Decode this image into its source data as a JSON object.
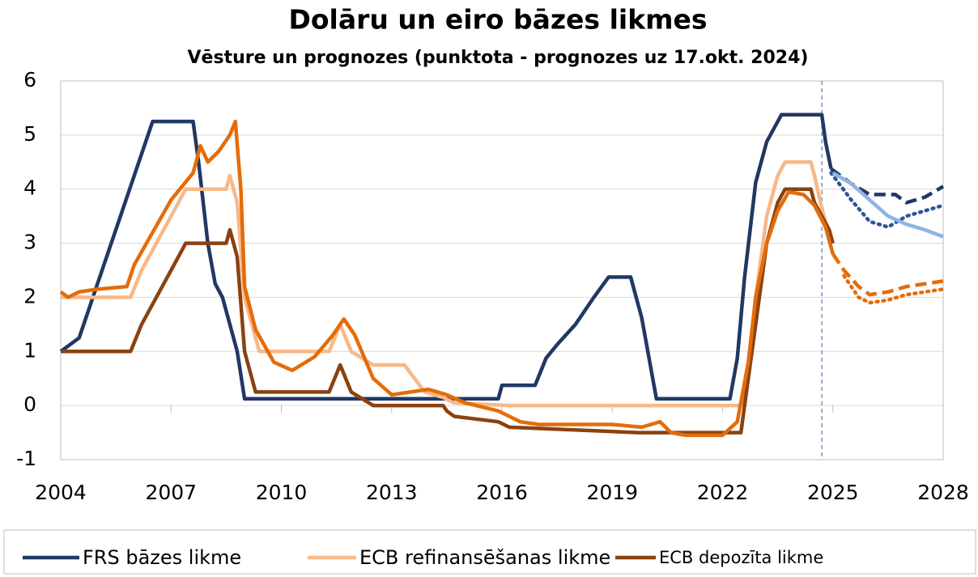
{
  "chart_data": {
    "type": "line",
    "title": "Dolāru un eiro bāzes likmes",
    "subtitle": "Vēsture un prognozes (punktota - prognozes uz 17.okt. 2024)",
    "xlim": [
      2004,
      2028
    ],
    "xticks": [
      2004,
      2007,
      2010,
      2013,
      2016,
      2019,
      2022,
      2025,
      2028
    ],
    "ylim": [
      -1,
      6
    ],
    "yticks": [
      -1,
      0,
      1,
      2,
      3,
      4,
      5,
      6
    ],
    "grid": true,
    "legend": "bottom",
    "forecast_line": 2024.7,
    "series": [
      {
        "name": "FRS bāzes likme",
        "color": "#203864",
        "dash": "solid",
        "x": [
          2004,
          2004.5,
          2004.75,
          2005,
          2005.5,
          2006,
          2006.5,
          2007.6,
          2007.75,
          2008,
          2008.2,
          2008.4,
          2008.8,
          2009,
          2015.9,
          2016,
          2016.9,
          2017.2,
          2017.5,
          2018,
          2018.5,
          2018.9,
          2019.5,
          2019.8,
          2020.2,
          2022.2,
          2022.4,
          2022.6,
          2022.9,
          2023.2,
          2023.6,
          2024.7,
          2024.8,
          2024.95
        ],
        "values": [
          1.0,
          1.25,
          1.75,
          2.25,
          3.25,
          4.25,
          5.25,
          5.25,
          4.5,
          3.0,
          2.25,
          2.0,
          1.0,
          0.125,
          0.125,
          0.375,
          0.375,
          0.875,
          1.125,
          1.5,
          2.0,
          2.375,
          2.375,
          1.625,
          0.125,
          0.125,
          0.875,
          2.375,
          4.125,
          4.875,
          5.375,
          5.375,
          4.875,
          4.375
        ]
      },
      {
        "name": "ECB refinansēšanas likme",
        "color": "#f8b888",
        "dash": "solid",
        "x": [
          2004,
          2005.9,
          2006.2,
          2006.6,
          2007,
          2007.4,
          2008.5,
          2008.6,
          2008.8,
          2009,
          2009.3,
          2009.4,
          2011.3,
          2011.6,
          2011.9,
          2012.5,
          2013.35,
          2013.9,
          2014.4,
          2014.7,
          2016.2,
          2022.5,
          2022.7,
          2022.9,
          2023.2,
          2023.5,
          2023.7,
          2024.4,
          2024.5,
          2024.7,
          2024.8
        ],
        "values": [
          2.0,
          2.0,
          2.5,
          3.0,
          3.5,
          4.0,
          4.0,
          4.25,
          3.75,
          2.0,
          1.25,
          1.0,
          1.0,
          1.5,
          1.0,
          0.75,
          0.75,
          0.25,
          0.15,
          0.05,
          0,
          0,
          0.5,
          2.0,
          3.5,
          4.25,
          4.5,
          4.5,
          4.25,
          3.65,
          3.4
        ]
      },
      {
        "name": "ECB depozīta likme",
        "color": "#8a4210",
        "dash": "solid",
        "x": [
          2004,
          2005.9,
          2006.2,
          2006.6,
          2007,
          2007.4,
          2008.5,
          2008.6,
          2008.8,
          2009,
          2009.3,
          2011.3,
          2011.6,
          2011.9,
          2012.5,
          2014.4,
          2014.5,
          2014.7,
          2015.9,
          2016.2,
          2019.7,
          2022.5,
          2022.6,
          2022.9,
          2023.2,
          2023.5,
          2023.7,
          2024.4,
          2024.5,
          2024.7,
          2024.9,
          2025
        ],
        "values": [
          1.0,
          1.0,
          1.5,
          2.0,
          2.5,
          3.0,
          3.0,
          3.25,
          2.75,
          1.0,
          0.25,
          0.25,
          0.75,
          0.25,
          0,
          0,
          -0.1,
          -0.2,
          -0.3,
          -0.4,
          -0.5,
          -0.5,
          0,
          1.5,
          3.0,
          3.75,
          4.0,
          4.0,
          3.75,
          3.5,
          3.25,
          3.0
        ]
      },
      {
        "color": "#e46c0a",
        "dash": "solid",
        "x": [
          2004,
          2004.2,
          2004.5,
          2005,
          2005.8,
          2006,
          2006.5,
          2007,
          2007.6,
          2007.8,
          2008,
          2008.3,
          2008.6,
          2008.75,
          2008.9,
          2009,
          2009.3,
          2009.8,
          2010.3,
          2010.9,
          2011.4,
          2011.7,
          2012,
          2012.5,
          2013,
          2014,
          2014.5,
          2015,
          2015.9,
          2016.5,
          2017,
          2019,
          2019.8,
          2020.3,
          2020.6,
          2021,
          2022,
          2022.4,
          2022.7,
          2022.9,
          2023.2,
          2023.5,
          2023.8,
          2024.2,
          2024.5,
          2024.8,
          2025
        ],
        "values": [
          2.1,
          2.0,
          2.1,
          2.15,
          2.2,
          2.6,
          3.2,
          3.8,
          4.3,
          4.8,
          4.5,
          4.7,
          5.0,
          5.25,
          4.0,
          2.2,
          1.4,
          0.8,
          0.65,
          0.9,
          1.3,
          1.6,
          1.3,
          0.5,
          0.2,
          0.3,
          0.2,
          0.05,
          -0.1,
          -0.3,
          -0.35,
          -0.35,
          -0.4,
          -0.3,
          -0.5,
          -0.55,
          -0.55,
          -0.3,
          0.8,
          2.0,
          3.0,
          3.6,
          3.95,
          3.9,
          3.7,
          3.3,
          2.8
        ]
      },
      {
        "color": "#203864",
        "dash": "dashed",
        "x": [
          2024.95,
          2025.5,
          2026,
          2026.7,
          2027,
          2027.5,
          2028
        ],
        "values": [
          4.375,
          4.1,
          3.9,
          3.9,
          3.75,
          3.85,
          4.05
        ]
      },
      {
        "color": "#2f5597",
        "dash": "dotted",
        "x": [
          2024.95,
          2025.5,
          2026,
          2026.5,
          2027,
          2027.5,
          2028
        ],
        "values": [
          4.3,
          3.8,
          3.4,
          3.3,
          3.5,
          3.6,
          3.7
        ]
      },
      {
        "color": "#8eb4e3",
        "dash": "solid",
        "x": [
          2025,
          2025.5,
          2026,
          2026.5,
          2027,
          2027.5,
          2028
        ],
        "values": [
          4.3,
          4.1,
          3.8,
          3.5,
          3.35,
          3.25,
          3.12
        ]
      },
      {
        "color": "#e46c0a",
        "dash": "dashed",
        "x": [
          2025,
          2025.3,
          2025.7,
          2026,
          2026.5,
          2027,
          2028
        ],
        "values": [
          2.8,
          2.5,
          2.2,
          2.05,
          2.1,
          2.2,
          2.3
        ]
      },
      {
        "color": "#e46c0a",
        "dash": "dotted",
        "x": [
          2025.3,
          2025.7,
          2026,
          2026.5,
          2027,
          2028
        ],
        "values": [
          2.4,
          2.0,
          1.9,
          1.95,
          2.05,
          2.15
        ]
      }
    ]
  }
}
